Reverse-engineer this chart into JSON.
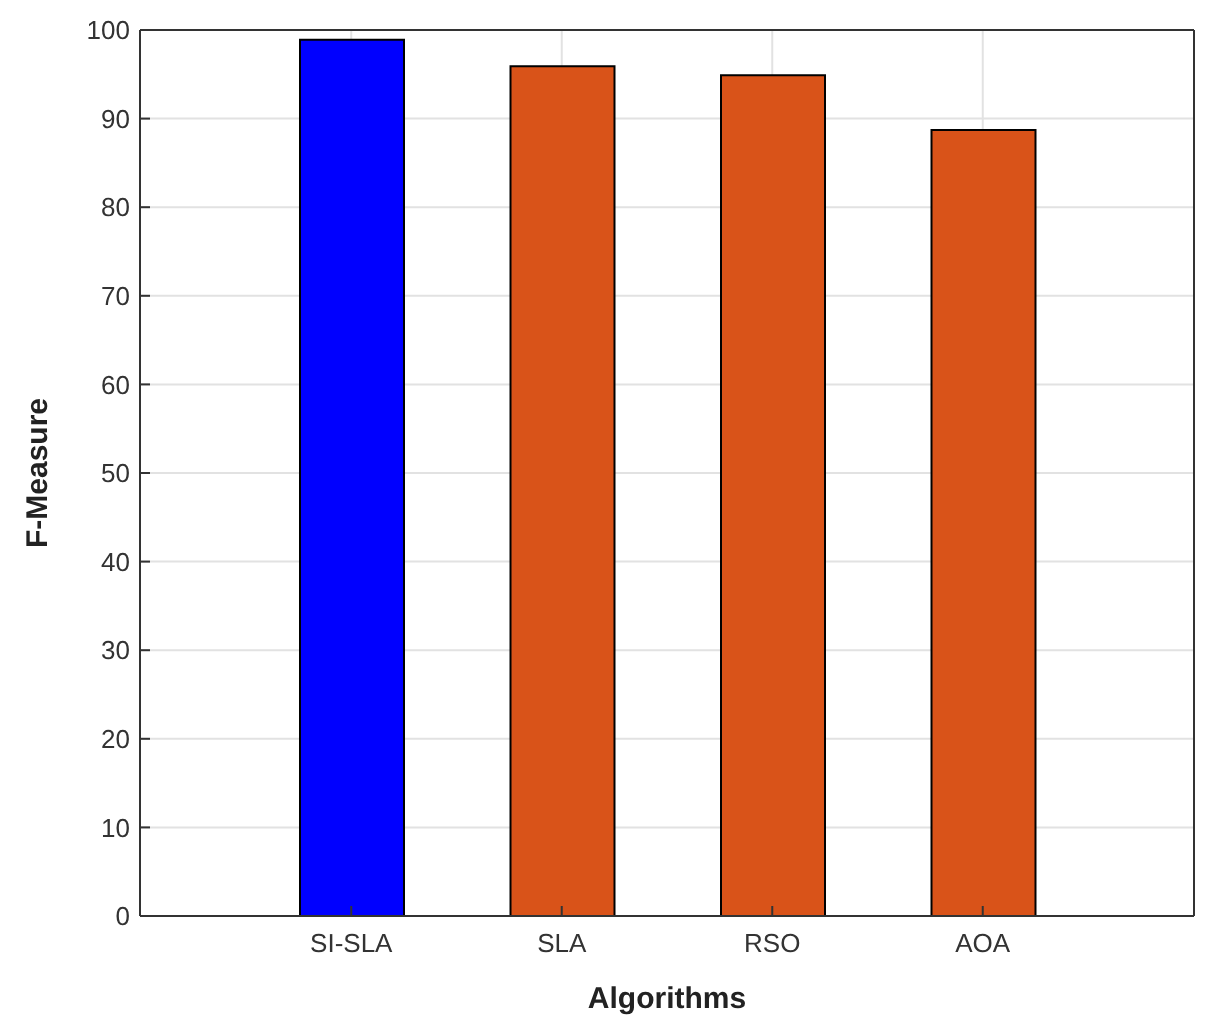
{
  "chart_data": {
    "type": "bar",
    "xlabel": "Algorithms",
    "ylabel": "F-Measure",
    "categories": [
      "SI-SLA",
      "SLA",
      "RSO",
      "AOA"
    ],
    "values": [
      98.9,
      95.9,
      94.9,
      88.7
    ],
    "colors": [
      "#0000ff",
      "#d95319",
      "#d95319",
      "#d95319"
    ],
    "ylim": [
      0,
      100
    ],
    "yticks": [
      0,
      10,
      20,
      30,
      40,
      50,
      60,
      70,
      80,
      90,
      100
    ],
    "grid": true
  }
}
